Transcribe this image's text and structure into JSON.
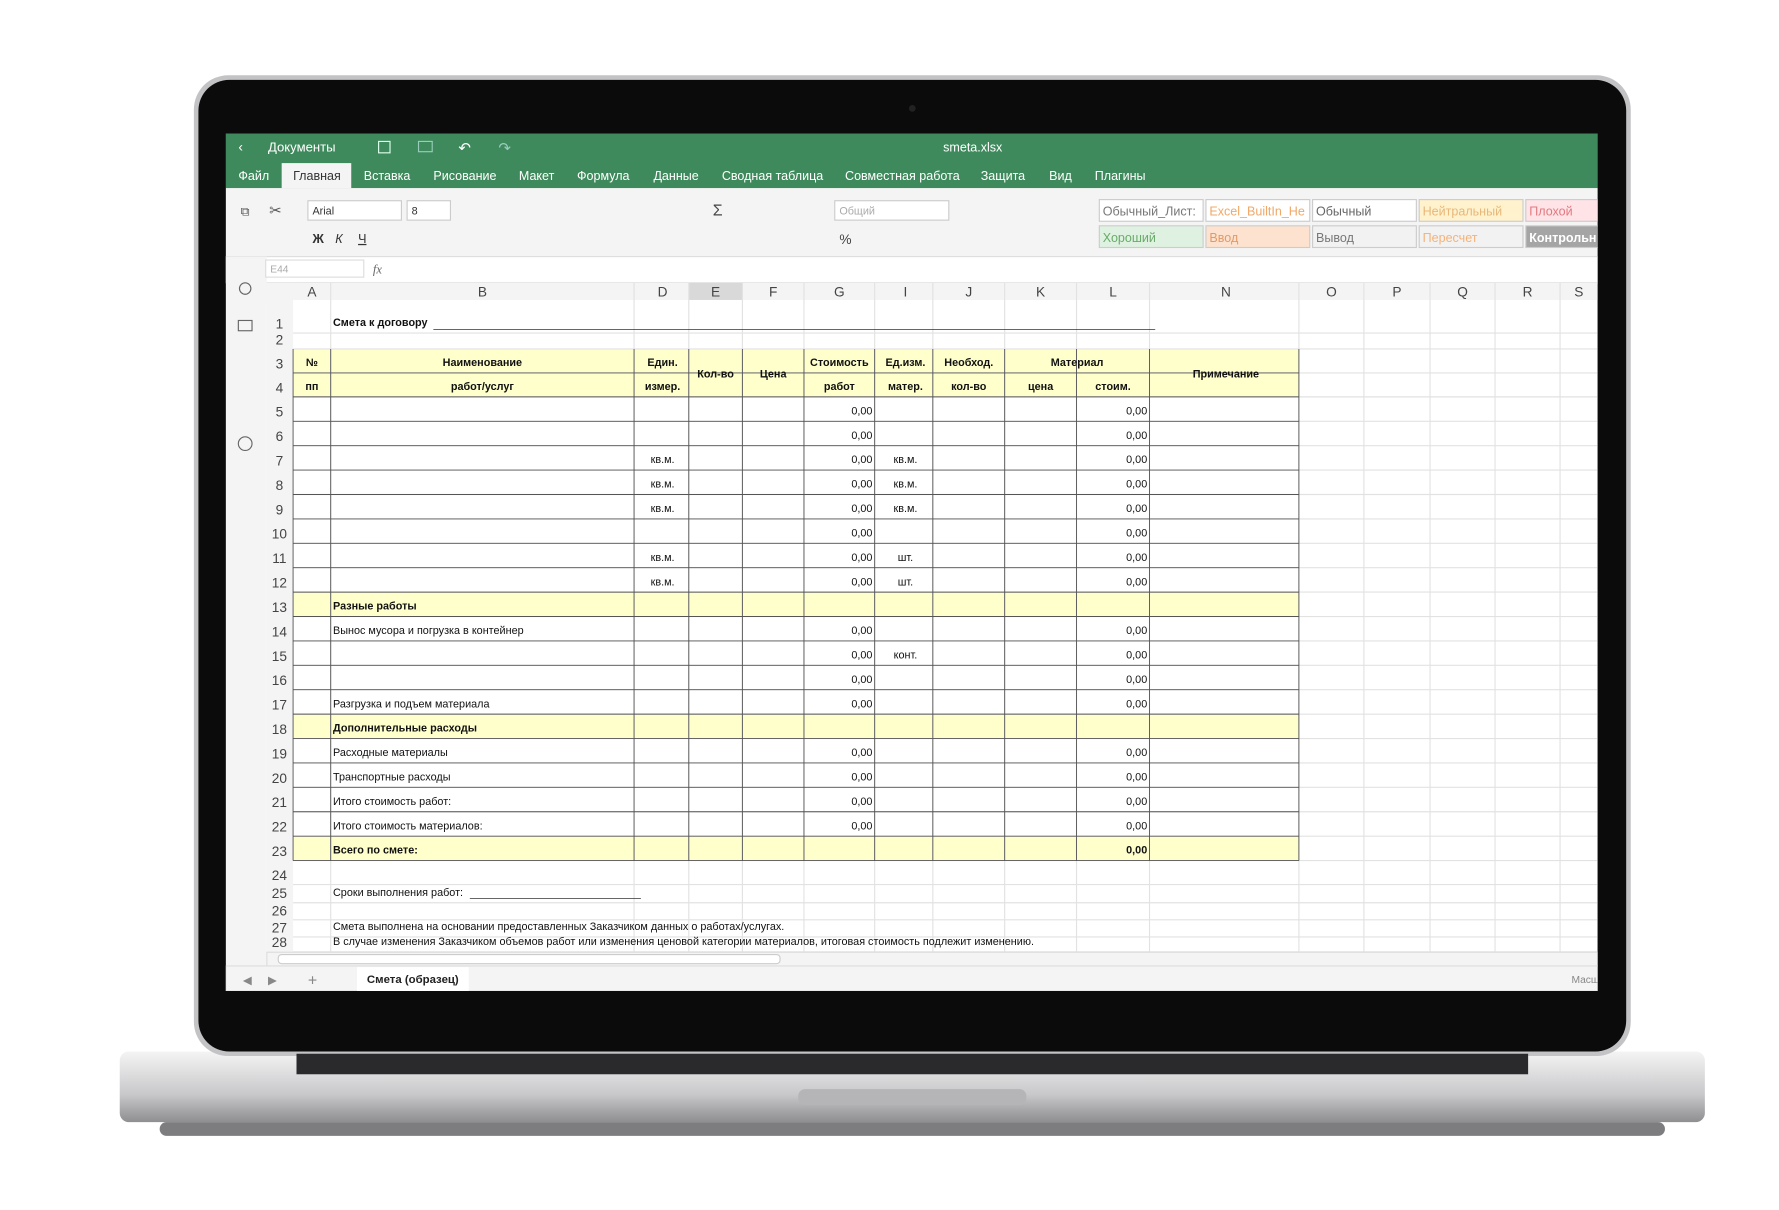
{
  "app": {
    "back": "Документы",
    "filename": "smeta.xlsx",
    "tabs": [
      "Файл",
      "Главная",
      "Вставка",
      "Рисование",
      "Макет",
      "Формула",
      "Данные",
      "Сводная таблица",
      "Совместная работа",
      "Защита",
      "Вид",
      "Плагины"
    ]
  },
  "toolbar": {
    "font": "Arial",
    "size": "8",
    "format_buttons": [
      "Ж",
      "К",
      "Ч"
    ],
    "sum": "Σ",
    "percent": "%",
    "number_format": "Общий",
    "styles": [
      "Обычный_Лист:",
      "Excel_BuiltIn_He",
      "Обычный",
      "Нейтральный",
      "Плохой",
      "Хороший",
      "Ввод",
      "Вывод",
      "Пересчет",
      "Контрольн"
    ]
  },
  "formula_bar": {
    "cell": "E44",
    "fx": "fx"
  },
  "sheet": {
    "columns": [
      "A",
      "B",
      "D",
      "E",
      "F",
      "G",
      "I",
      "J",
      "K",
      "L",
      "N",
      "O",
      "P",
      "Q",
      "R",
      "S"
    ],
    "rows": [
      {
        "num": 1,
        "cells": {
          "B": "Смета к договору"
        }
      },
      {
        "num": 2,
        "cells": {}
      },
      {
        "num": 3,
        "cells": {
          "A": "№",
          "B": "Наименование",
          "D": "Един.",
          "E": "Кол-во",
          "F": "Цена",
          "G": "Стоимость",
          "I": "Ед.изм.",
          "J": "Необход.",
          "K": "Материал",
          "N": "Примечание"
        }
      },
      {
        "num": 4,
        "cells": {
          "A": "пп",
          "B": "работ/услуг",
          "D": "измер.",
          "G": "работ",
          "I": "матер.",
          "J": "кол-во",
          "K": "цена",
          "L": "стоим."
        }
      },
      {
        "num": 5,
        "cells": {
          "G": "0,00",
          "L": "0,00"
        }
      },
      {
        "num": 6,
        "cells": {
          "G": "0,00",
          "L": "0,00"
        }
      },
      {
        "num": 7,
        "cells": {
          "D": "кв.м.",
          "G": "0,00",
          "I": "кв.м.",
          "L": "0,00"
        }
      },
      {
        "num": 8,
        "cells": {
          "D": "кв.м.",
          "G": "0,00",
          "I": "кв.м.",
          "L": "0,00"
        }
      },
      {
        "num": 9,
        "cells": {
          "D": "кв.м.",
          "G": "0,00",
          "I": "кв.м.",
          "L": "0,00"
        }
      },
      {
        "num": 10,
        "cells": {
          "G": "0,00",
          "L": "0,00"
        }
      },
      {
        "num": 11,
        "cells": {
          "D": "кв.м.",
          "G": "0,00",
          "I": "шт.",
          "L": "0,00"
        }
      },
      {
        "num": 12,
        "cells": {
          "D": "кв.м.",
          "G": "0,00",
          "I": "шт.",
          "L": "0,00"
        }
      },
      {
        "num": 13,
        "cells": {
          "B": "Разные работы"
        }
      },
      {
        "num": 14,
        "cells": {
          "B": "Вынос мусора и погрузка в контейнер",
          "G": "0,00",
          "L": "0,00"
        }
      },
      {
        "num": 15,
        "cells": {
          "G": "0,00",
          "I": "конт.",
          "L": "0,00"
        }
      },
      {
        "num": 16,
        "cells": {
          "G": "0,00",
          "L": "0,00"
        }
      },
      {
        "num": 17,
        "cells": {
          "B": "Разгрузка и подъем материала",
          "G": "0,00",
          "L": "0,00"
        }
      },
      {
        "num": 18,
        "cells": {
          "B": "Дополнительные расходы"
        }
      },
      {
        "num": 19,
        "cells": {
          "B": "Расходные материалы",
          "G": "0,00",
          "L": "0,00"
        }
      },
      {
        "num": 20,
        "cells": {
          "B": "Транспортные расходы",
          "G": "0,00",
          "L": "0,00"
        }
      },
      {
        "num": 21,
        "cells": {
          "B": "Итого стоимость работ:",
          "G": "0,00",
          "L": "0,00"
        }
      },
      {
        "num": 22,
        "cells": {
          "B": "Итого стоимость материалов:",
          "G": "0,00",
          "L": "0,00"
        }
      },
      {
        "num": 23,
        "cells": {
          "B": "Всего по смете:",
          "L": "0,00"
        }
      },
      {
        "num": 24,
        "cells": {}
      },
      {
        "num": 25,
        "cells": {
          "B": "Сроки выполнения работ:"
        }
      },
      {
        "num": 26,
        "cells": {}
      },
      {
        "num": 27,
        "cells": {
          "B": "Смета выполнена на основании предоставленных Заказчиком данных о работах/услугах."
        }
      },
      {
        "num": 28,
        "cells": {
          "B": "В случае изменения Заказчиком объемов работ или изменения ценовой категории материалов, итоговая стоимость подлежит изменению."
        }
      }
    ]
  },
  "sheet_tab": "Смета (образец)",
  "zoom": "Масштаб"
}
